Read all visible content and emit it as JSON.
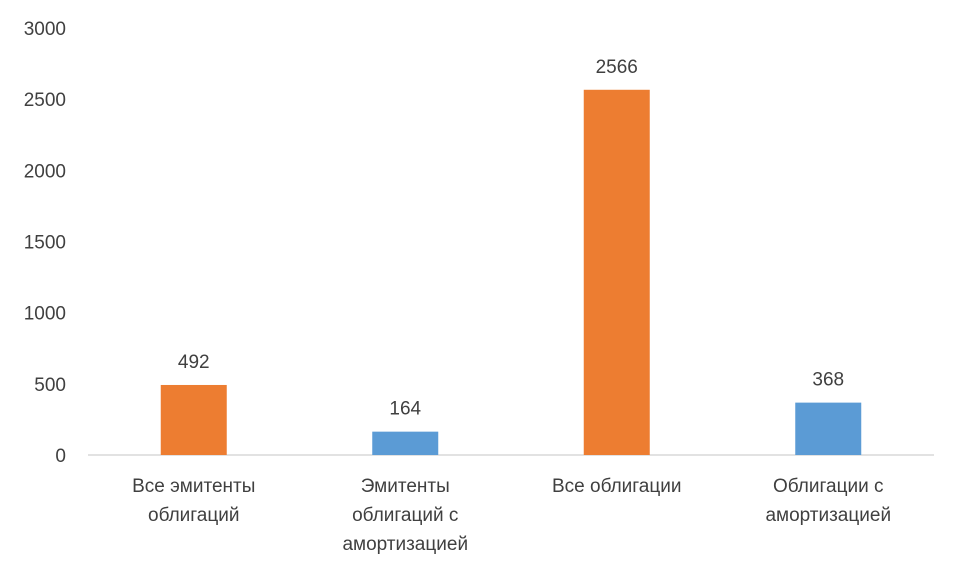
{
  "chart_data": {
    "type": "bar",
    "categories": [
      [
        "Все эмитенты",
        "облигаций"
      ],
      [
        "Эмитенты",
        "облигаций с",
        "амортизацией"
      ],
      [
        "Все облигации"
      ],
      [
        "Облигации с",
        "амортизацией"
      ]
    ],
    "values": [
      492,
      164,
      2566,
      368
    ],
    "data_labels": [
      "492",
      "164",
      "2566",
      "368"
    ],
    "bar_colors": [
      "#ED7D31",
      "#5B9BD5",
      "#ED7D31",
      "#5B9BD5"
    ],
    "ylim": [
      0,
      3000
    ],
    "yticks": [
      0,
      500,
      1000,
      1500,
      2000,
      2500,
      3000
    ],
    "ytick_labels": [
      "0",
      "500",
      "1000",
      "1500",
      "2000",
      "2500",
      "3000"
    ],
    "grid": false,
    "legend": "none"
  }
}
